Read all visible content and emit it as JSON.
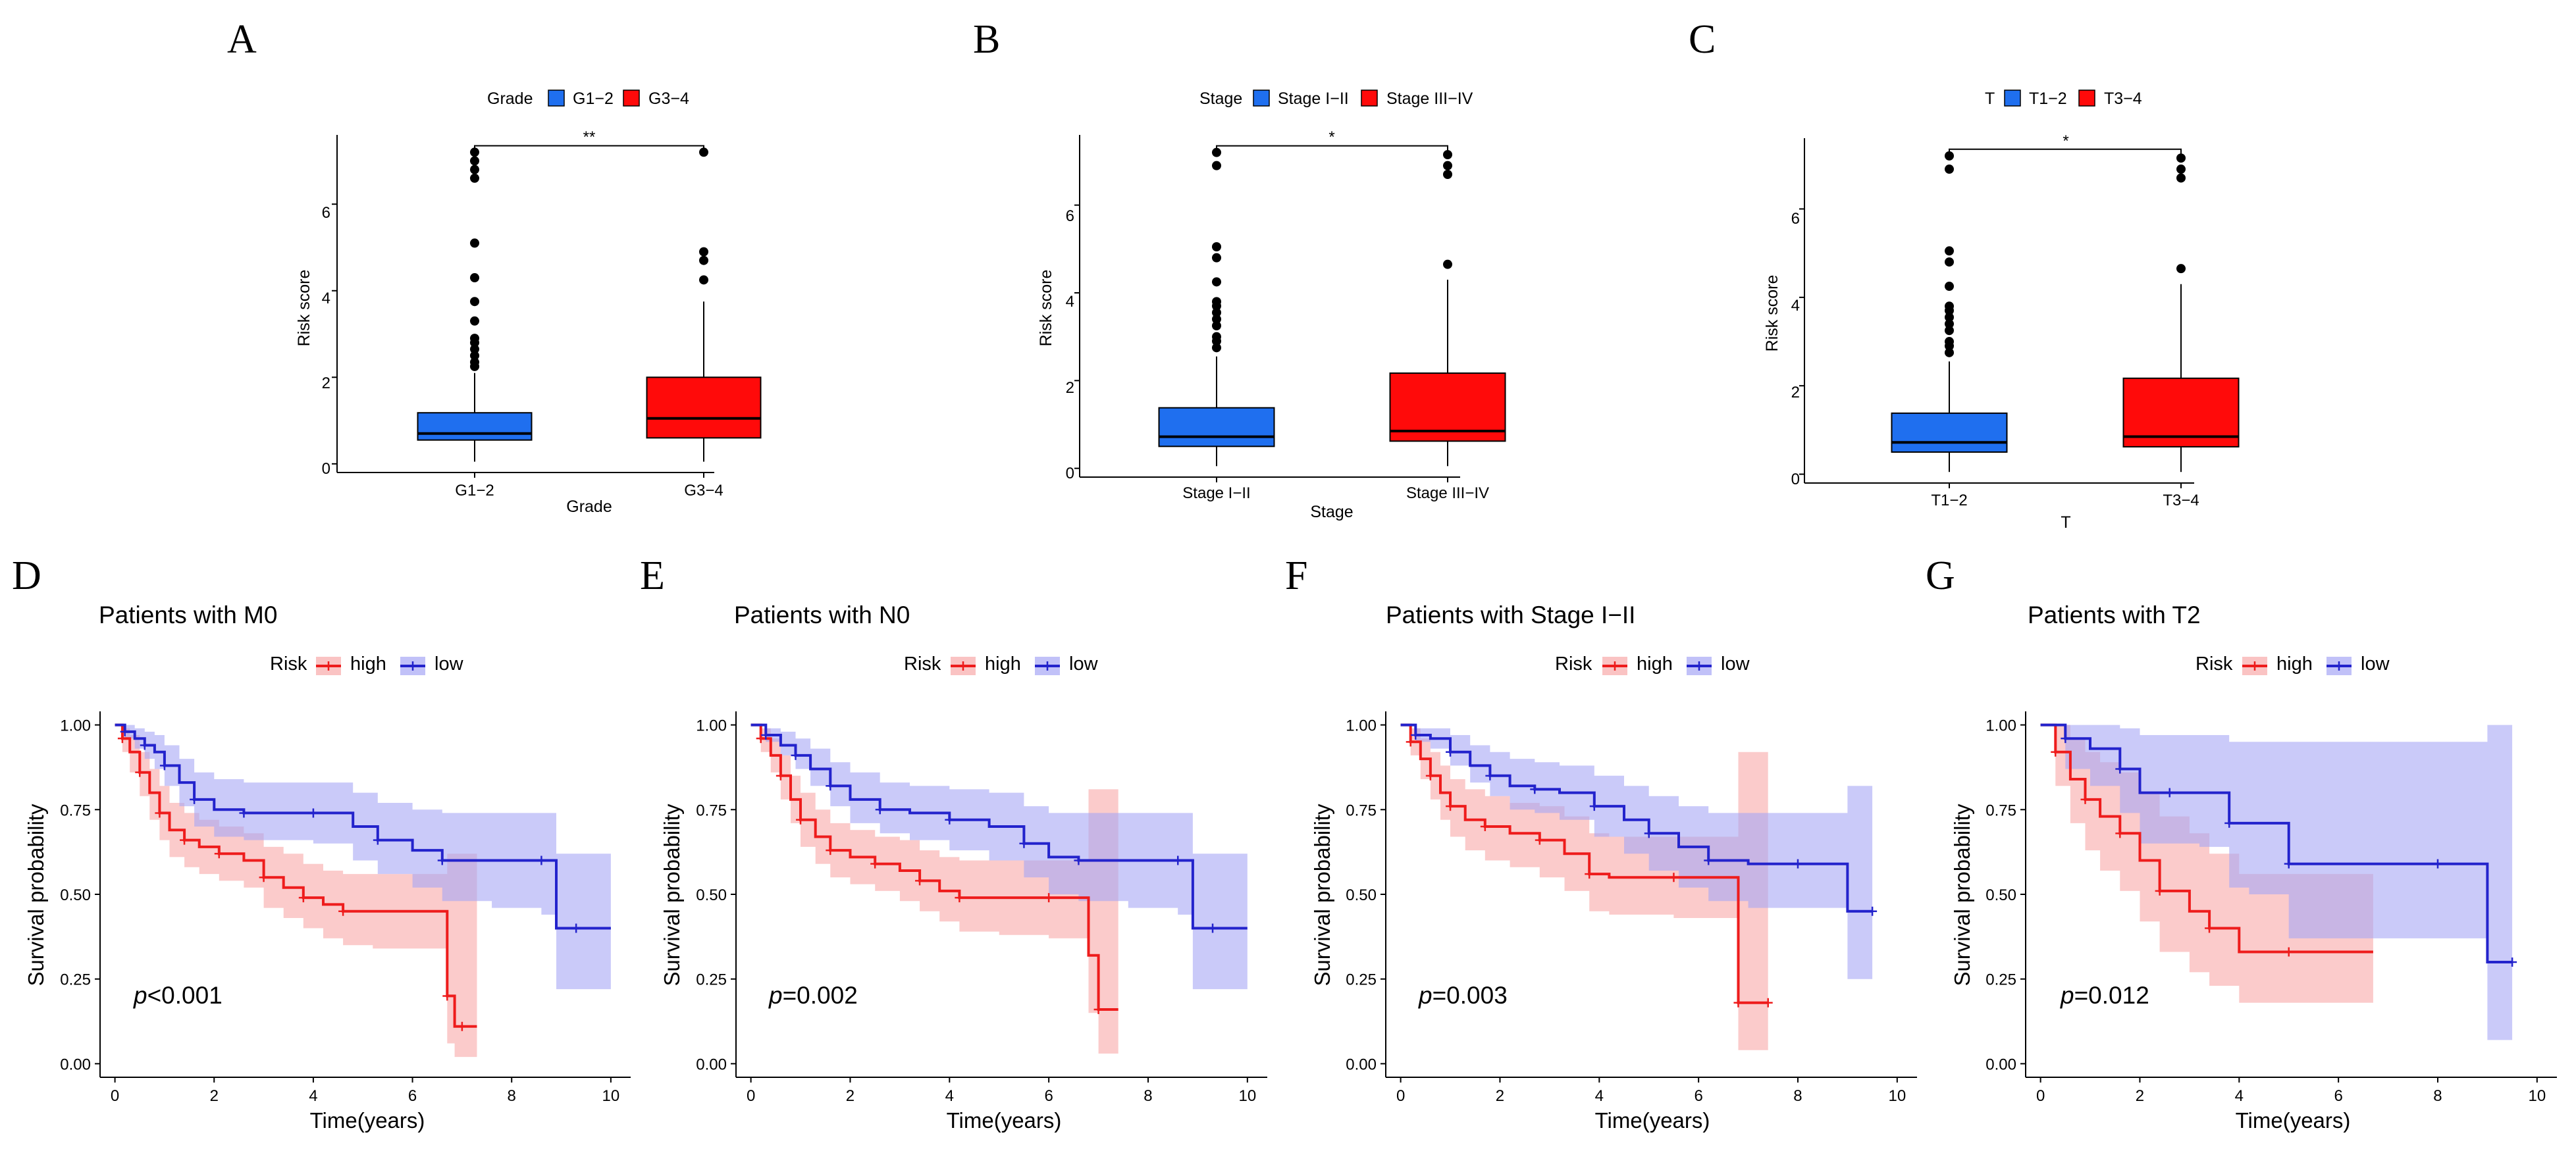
{
  "colors": {
    "box_low": "#1f6fef",
    "box_high": "#ff0a0a",
    "km_high": "#ee1c1c",
    "km_low": "#2323cc",
    "km_high_ci": "#f8a9a9",
    "km_low_ci": "#a7a7f5"
  },
  "chart_data": [
    {
      "type": "boxplot",
      "panel": "A",
      "legend_title": "Grade",
      "legend_items": [
        "G1−2",
        "G3−4"
      ],
      "categories": [
        "G1−2",
        "G3−4"
      ],
      "xlabel": "Grade",
      "ylabel": "Risk score",
      "ylim": [
        -0.2,
        7.6
      ],
      "yticks": [
        "0",
        "2",
        "4",
        "6"
      ],
      "ytick_values": [
        0,
        2,
        4,
        6
      ],
      "significance": "**",
      "boxes": [
        {
          "q1": 0.55,
          "median": 0.7,
          "q3": 1.18,
          "whisker_low": 0.05,
          "whisker_high": 2.1,
          "outliers": [
            2.25,
            2.35,
            2.5,
            2.65,
            2.8,
            2.9,
            3.3,
            3.75,
            4.3,
            5.1,
            6.6,
            6.8,
            7.0,
            7.2
          ]
        },
        {
          "q1": 0.6,
          "median": 1.05,
          "q3": 2.0,
          "whisker_low": 0.05,
          "whisker_high": 3.75,
          "outliers": [
            4.25,
            4.7,
            4.9,
            7.2
          ]
        }
      ]
    },
    {
      "type": "boxplot",
      "panel": "B",
      "legend_title": "Stage",
      "legend_items": [
        "Stage I−II",
        "Stage III−IV"
      ],
      "categories": [
        "Stage I−II",
        "Stage III−IV"
      ],
      "xlabel": "Stage",
      "ylabel": "Risk score",
      "ylim": [
        -0.2,
        7.6
      ],
      "yticks": [
        "0",
        "2",
        "4",
        "6"
      ],
      "ytick_values": [
        0,
        2,
        4,
        6
      ],
      "significance": "*",
      "boxes": [
        {
          "q1": 0.5,
          "median": 0.72,
          "q3": 1.38,
          "whisker_low": 0.05,
          "whisker_high": 2.55,
          "outliers": [
            2.75,
            2.9,
            3.0,
            3.25,
            3.4,
            3.55,
            3.7,
            3.8,
            4.25,
            4.8,
            5.05,
            6.9,
            7.2
          ]
        },
        {
          "q1": 0.62,
          "median": 0.85,
          "q3": 2.17,
          "whisker_low": 0.05,
          "whisker_high": 4.3,
          "outliers": [
            4.65,
            6.7,
            6.9,
            7.15
          ]
        }
      ]
    },
    {
      "type": "boxplot",
      "panel": "C",
      "legend_title": "T",
      "legend_items": [
        "T1−2",
        "T3−4"
      ],
      "categories": [
        "T1−2",
        "T3−4"
      ],
      "xlabel": "T",
      "ylabel": "Risk score",
      "ylim": [
        -0.2,
        7.6
      ],
      "yticks": [
        "0",
        "2",
        "4",
        "6"
      ],
      "ytick_values": [
        0,
        2,
        4,
        6
      ],
      "significance": "*",
      "boxes": [
        {
          "q1": 0.5,
          "median": 0.72,
          "q3": 1.38,
          "whisker_low": 0.05,
          "whisker_high": 2.55,
          "outliers": [
            2.75,
            2.9,
            3.0,
            3.25,
            3.4,
            3.55,
            3.7,
            3.8,
            4.25,
            4.8,
            5.05,
            6.9,
            7.2
          ]
        },
        {
          "q1": 0.62,
          "median": 0.85,
          "q3": 2.17,
          "whisker_low": 0.05,
          "whisker_high": 4.3,
          "outliers": [
            4.65,
            6.7,
            6.9,
            7.15
          ]
        }
      ]
    },
    {
      "type": "line",
      "subtype": "kaplan-meier",
      "panel": "D",
      "title": "Patients with M0",
      "legend_title": "Risk",
      "legend_items": [
        "high",
        "low"
      ],
      "xlabel": "Time(years)",
      "ylabel": "Survival probability",
      "xlim": [
        -0.3,
        10.4
      ],
      "xticks": [
        "0",
        "2",
        "4",
        "6",
        "8",
        "10"
      ],
      "xtick_values": [
        0,
        2,
        4,
        6,
        8,
        10
      ],
      "ylim": [
        -0.04,
        1.04
      ],
      "yticks": [
        "0.00",
        "0.25",
        "0.50",
        "0.75",
        "1.00"
      ],
      "ytick_values": [
        0,
        0.25,
        0.5,
        0.75,
        1
      ],
      "pvalue_prefix": "p",
      "pvalue_text": "<0.001",
      "series": [
        {
          "name": "high",
          "x": [
            0,
            0.15,
            0.3,
            0.5,
            0.7,
            0.9,
            1.1,
            1.4,
            1.7,
            2.1,
            2.6,
            3.0,
            3.4,
            3.8,
            4.2,
            4.6,
            5.2,
            6.7,
            6.85,
            7.0,
            7.3
          ],
          "y": [
            1.0,
            0.96,
            0.92,
            0.86,
            0.8,
            0.74,
            0.69,
            0.66,
            0.64,
            0.62,
            0.6,
            0.55,
            0.52,
            0.49,
            0.47,
            0.45,
            0.45,
            0.2,
            0.11,
            0.11,
            0.11
          ],
          "ci_low": [
            1.0,
            0.92,
            0.86,
            0.79,
            0.72,
            0.66,
            0.61,
            0.58,
            0.56,
            0.54,
            0.52,
            0.46,
            0.43,
            0.4,
            0.37,
            0.35,
            0.34,
            0.06,
            0.02,
            0.02,
            0.02
          ],
          "ci_high": [
            1.0,
            0.99,
            0.97,
            0.92,
            0.87,
            0.82,
            0.77,
            0.74,
            0.72,
            0.7,
            0.68,
            0.64,
            0.62,
            0.59,
            0.57,
            0.56,
            0.56,
            0.62,
            0.62,
            0.62,
            0.62
          ]
        },
        {
          "name": "low",
          "x": [
            0,
            0.2,
            0.4,
            0.6,
            0.8,
            1.0,
            1.3,
            1.6,
            2.0,
            2.6,
            3.2,
            4.0,
            4.8,
            5.3,
            6.0,
            6.6,
            7.6,
            8.6,
            8.9,
            9.3,
            10.0
          ],
          "y": [
            1.0,
            0.98,
            0.96,
            0.94,
            0.92,
            0.88,
            0.83,
            0.78,
            0.75,
            0.74,
            0.74,
            0.74,
            0.7,
            0.66,
            0.63,
            0.6,
            0.6,
            0.6,
            0.4,
            0.4,
            0.4
          ],
          "ci_low": [
            1.0,
            0.96,
            0.93,
            0.9,
            0.87,
            0.82,
            0.76,
            0.7,
            0.67,
            0.66,
            0.66,
            0.65,
            0.6,
            0.56,
            0.52,
            0.48,
            0.46,
            0.44,
            0.22,
            0.22,
            0.22
          ],
          "ci_high": [
            1.0,
            1.0,
            0.99,
            0.98,
            0.97,
            0.94,
            0.9,
            0.86,
            0.84,
            0.83,
            0.83,
            0.83,
            0.8,
            0.77,
            0.75,
            0.74,
            0.74,
            0.74,
            0.62,
            0.62,
            0.62
          ]
        }
      ]
    },
    {
      "type": "line",
      "subtype": "kaplan-meier",
      "panel": "E",
      "title": "Patients with N0",
      "legend_title": "Risk",
      "legend_items": [
        "high",
        "low"
      ],
      "xlabel": "Time(years)",
      "ylabel": "Survival probability",
      "xlim": [
        -0.3,
        10.4
      ],
      "xticks": [
        "0",
        "2",
        "4",
        "6",
        "8",
        "10"
      ],
      "xtick_values": [
        0,
        2,
        4,
        6,
        8,
        10
      ],
      "ylim": [
        -0.04,
        1.04
      ],
      "yticks": [
        "0.00",
        "0.25",
        "0.50",
        "0.75",
        "1.00"
      ],
      "ytick_values": [
        0,
        0.25,
        0.5,
        0.75,
        1
      ],
      "pvalue_prefix": "p",
      "pvalue_text": "=0.002",
      "series": [
        {
          "name": "high",
          "x": [
            0,
            0.2,
            0.4,
            0.6,
            0.8,
            1.0,
            1.3,
            1.6,
            2.0,
            2.5,
            3.0,
            3.4,
            3.8,
            4.2,
            5.0,
            6.0,
            6.8,
            7.0,
            7.4
          ],
          "y": [
            1.0,
            0.96,
            0.91,
            0.85,
            0.78,
            0.72,
            0.67,
            0.63,
            0.61,
            0.59,
            0.57,
            0.54,
            0.51,
            0.49,
            0.49,
            0.49,
            0.32,
            0.16,
            0.16
          ],
          "ci_low": [
            1.0,
            0.92,
            0.86,
            0.78,
            0.71,
            0.64,
            0.59,
            0.55,
            0.53,
            0.51,
            0.48,
            0.45,
            0.42,
            0.39,
            0.38,
            0.37,
            0.15,
            0.03,
            0.03
          ],
          "ci_high": [
            1.0,
            0.99,
            0.96,
            0.91,
            0.85,
            0.8,
            0.75,
            0.71,
            0.69,
            0.67,
            0.66,
            0.63,
            0.61,
            0.6,
            0.6,
            0.6,
            0.81,
            0.81,
            0.81
          ]
        },
        {
          "name": "low",
          "x": [
            0,
            0.3,
            0.6,
            0.9,
            1.2,
            1.6,
            2.0,
            2.6,
            3.2,
            4.0,
            4.8,
            5.5,
            6.0,
            6.6,
            7.6,
            8.6,
            8.9,
            9.3,
            10.0
          ],
          "y": [
            1.0,
            0.97,
            0.94,
            0.91,
            0.87,
            0.82,
            0.78,
            0.75,
            0.74,
            0.72,
            0.7,
            0.65,
            0.61,
            0.6,
            0.6,
            0.6,
            0.4,
            0.4,
            0.4
          ],
          "ci_low": [
            1.0,
            0.95,
            0.91,
            0.87,
            0.82,
            0.76,
            0.71,
            0.68,
            0.66,
            0.63,
            0.6,
            0.55,
            0.5,
            0.48,
            0.46,
            0.44,
            0.22,
            0.22,
            0.22
          ],
          "ci_high": [
            1.0,
            0.99,
            0.98,
            0.96,
            0.93,
            0.89,
            0.86,
            0.83,
            0.82,
            0.81,
            0.8,
            0.76,
            0.74,
            0.74,
            0.74,
            0.74,
            0.62,
            0.62,
            0.62
          ]
        }
      ]
    },
    {
      "type": "line",
      "subtype": "kaplan-meier",
      "panel": "F",
      "title": "Patients with Stage I−II",
      "legend_title": "Risk",
      "legend_items": [
        "high",
        "low"
      ],
      "xlabel": "Time(years)",
      "ylabel": "Survival probability",
      "xlim": [
        -0.3,
        10.4
      ],
      "xticks": [
        "0",
        "2",
        "4",
        "6",
        "8",
        "10"
      ],
      "xtick_values": [
        0,
        2,
        4,
        6,
        8,
        10
      ],
      "ylim": [
        -0.04,
        1.04
      ],
      "yticks": [
        "0.00",
        "0.25",
        "0.50",
        "0.75",
        "1.00"
      ],
      "ytick_values": [
        0,
        0.25,
        0.5,
        0.75,
        1
      ],
      "pvalue_prefix": "p",
      "pvalue_text": "=0.003",
      "series": [
        {
          "name": "high",
          "x": [
            0,
            0.2,
            0.4,
            0.6,
            0.8,
            1.0,
            1.3,
            1.7,
            2.2,
            2.8,
            3.3,
            3.8,
            4.2,
            5.5,
            6.6,
            6.8,
            7.0,
            7.4
          ],
          "y": [
            1.0,
            0.95,
            0.9,
            0.85,
            0.8,
            0.76,
            0.72,
            0.7,
            0.68,
            0.66,
            0.62,
            0.56,
            0.55,
            0.55,
            0.55,
            0.18,
            0.18,
            0.18
          ],
          "ci_low": [
            1.0,
            0.91,
            0.84,
            0.78,
            0.72,
            0.67,
            0.63,
            0.6,
            0.58,
            0.55,
            0.51,
            0.45,
            0.44,
            0.43,
            0.43,
            0.04,
            0.04,
            0.04
          ],
          "ci_high": [
            1.0,
            0.99,
            0.96,
            0.92,
            0.88,
            0.84,
            0.81,
            0.79,
            0.77,
            0.76,
            0.73,
            0.68,
            0.67,
            0.67,
            0.67,
            0.92,
            0.92,
            0.92
          ]
        },
        {
          "name": "low",
          "x": [
            0,
            0.3,
            0.6,
            1.0,
            1.4,
            1.8,
            2.2,
            2.7,
            3.2,
            3.9,
            4.5,
            5.0,
            5.6,
            6.2,
            7.0,
            8.0,
            9.0,
            9.5
          ],
          "y": [
            1.0,
            0.97,
            0.96,
            0.92,
            0.88,
            0.85,
            0.82,
            0.81,
            0.8,
            0.76,
            0.72,
            0.68,
            0.64,
            0.6,
            0.59,
            0.59,
            0.45,
            0.45
          ],
          "ci_low": [
            1.0,
            0.95,
            0.93,
            0.88,
            0.83,
            0.79,
            0.75,
            0.74,
            0.72,
            0.67,
            0.62,
            0.57,
            0.52,
            0.48,
            0.46,
            0.46,
            0.25,
            0.25
          ],
          "ci_high": [
            1.0,
            0.99,
            0.99,
            0.97,
            0.94,
            0.92,
            0.9,
            0.89,
            0.88,
            0.85,
            0.82,
            0.79,
            0.76,
            0.74,
            0.74,
            0.74,
            0.82,
            0.82
          ]
        }
      ]
    },
    {
      "type": "line",
      "subtype": "kaplan-meier",
      "panel": "G",
      "title": "Patients with T2",
      "legend_title": "Risk",
      "legend_items": [
        "high",
        "low"
      ],
      "xlabel": "Time(years)",
      "ylabel": "Survival probability",
      "xlim": [
        -0.3,
        10.4
      ],
      "xticks": [
        "0",
        "2",
        "4",
        "6",
        "8",
        "10"
      ],
      "xtick_values": [
        0,
        2,
        4,
        6,
        8,
        10
      ],
      "ylim": [
        -0.04,
        1.04
      ],
      "yticks": [
        "0.00",
        "0.25",
        "0.50",
        "0.75",
        "1.00"
      ],
      "ytick_values": [
        0,
        0.25,
        0.5,
        0.75,
        1
      ],
      "pvalue_prefix": "p",
      "pvalue_text": "=0.012",
      "series": [
        {
          "name": "high",
          "x": [
            0,
            0.3,
            0.6,
            0.9,
            1.2,
            1.6,
            2.0,
            2.4,
            3.0,
            3.4,
            4.0,
            5.0,
            6.7
          ],
          "y": [
            1.0,
            0.92,
            0.84,
            0.78,
            0.73,
            0.68,
            0.6,
            0.51,
            0.45,
            0.4,
            0.33,
            0.33,
            0.33
          ],
          "ci_low": [
            1.0,
            0.82,
            0.71,
            0.63,
            0.57,
            0.51,
            0.42,
            0.33,
            0.27,
            0.23,
            0.18,
            0.18,
            0.18
          ],
          "ci_high": [
            1.0,
            1.0,
            0.96,
            0.92,
            0.89,
            0.86,
            0.8,
            0.73,
            0.68,
            0.62,
            0.56,
            0.56,
            0.56
          ]
        },
        {
          "name": "low",
          "x": [
            0,
            0.5,
            1.0,
            1.6,
            2.0,
            2.6,
            3.2,
            3.8,
            4.2,
            5.0,
            6.7,
            8.0,
            9.0,
            9.5
          ],
          "y": [
            1.0,
            0.96,
            0.93,
            0.87,
            0.8,
            0.8,
            0.8,
            0.71,
            0.71,
            0.59,
            0.59,
            0.59,
            0.3,
            0.3
          ],
          "ci_low": [
            1.0,
            0.87,
            0.82,
            0.74,
            0.65,
            0.65,
            0.64,
            0.52,
            0.5,
            0.37,
            0.37,
            0.37,
            0.07,
            0.07
          ],
          "ci_high": [
            1.0,
            1.0,
            1.0,
            0.99,
            0.97,
            0.97,
            0.97,
            0.95,
            0.95,
            0.95,
            0.95,
            0.95,
            1.0,
            1.0
          ]
        }
      ]
    }
  ]
}
